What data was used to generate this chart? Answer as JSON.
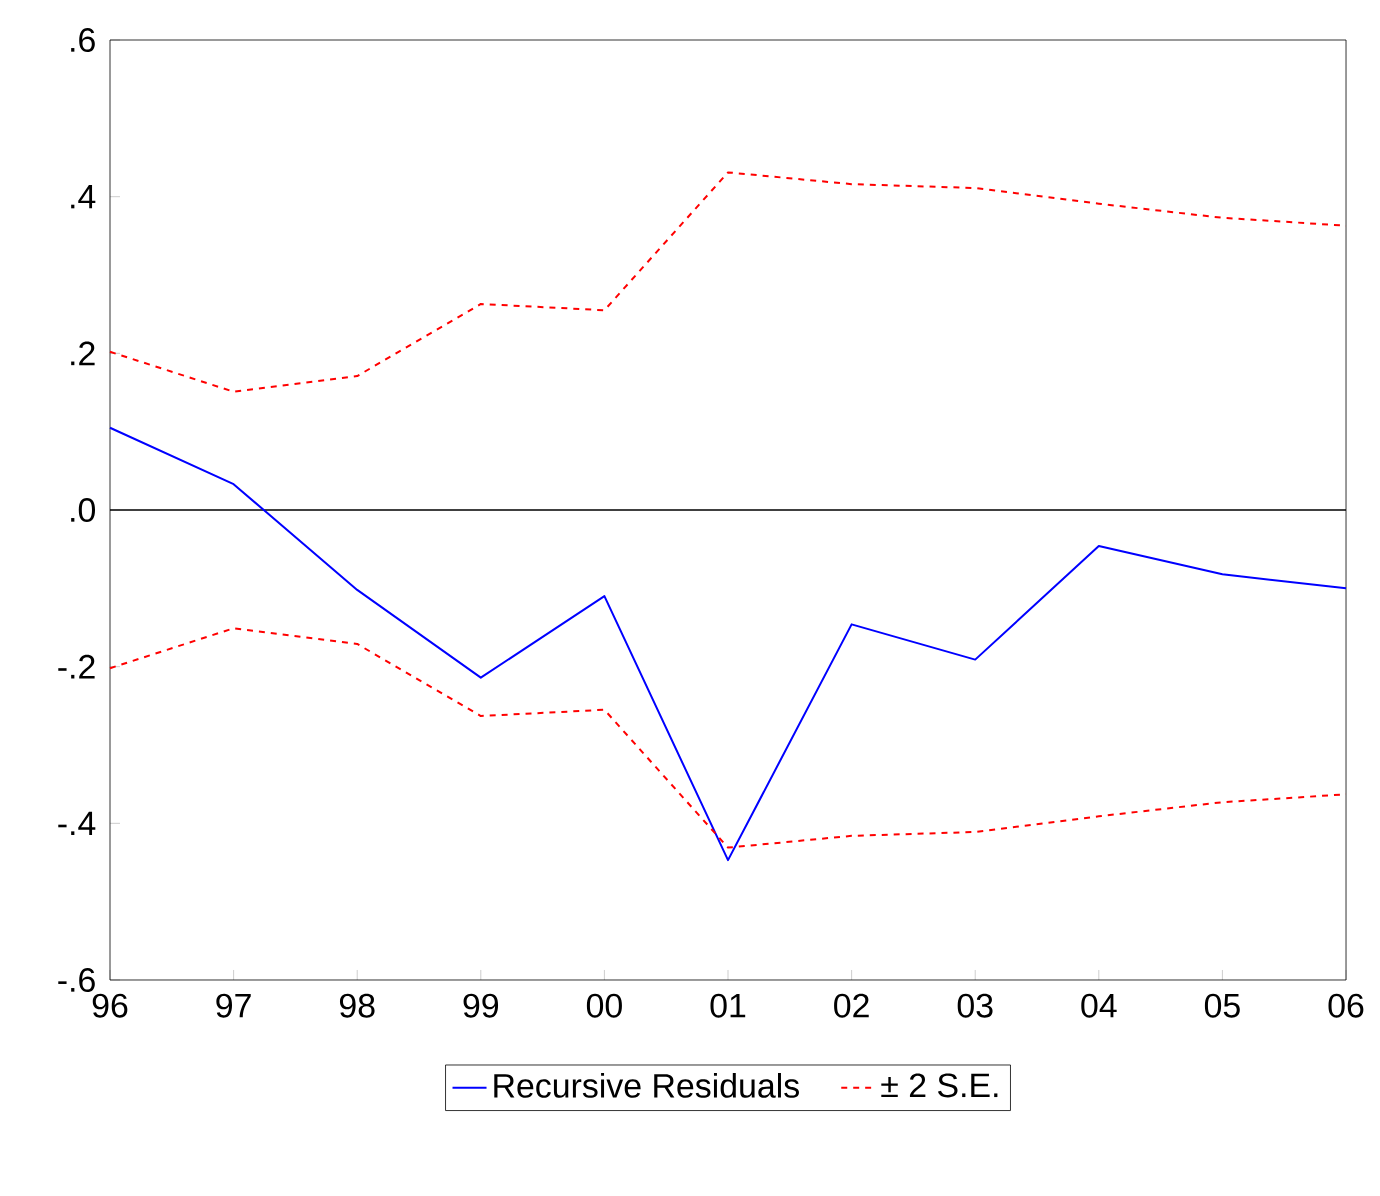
{
  "chart_data": {
    "type": "line",
    "categories": [
      "96",
      "97",
      "98",
      "99",
      "00",
      "01",
      "02",
      "03",
      "04",
      "05",
      "06"
    ],
    "series": [
      {
        "name": "Recursive Residuals",
        "color": "#0000ff",
        "line_style": "solid",
        "values": [
          0.105,
          0.033,
          -0.102,
          -0.214,
          -0.11,
          -0.447,
          -0.146,
          -0.191,
          -0.046,
          -0.082,
          -0.1
        ]
      },
      {
        "name": "± 2 S.E.",
        "color": "#ff0000",
        "line_style": "dashed",
        "values": [
          0.202,
          0.151,
          0.171,
          0.263,
          0.255,
          0.431,
          0.416,
          0.411,
          0.391,
          0.373,
          0.363
        ]
      },
      {
        "color": "#ff0000",
        "line_style": "dashed",
        "values": [
          -0.202,
          -0.151,
          -0.171,
          -0.263,
          -0.255,
          -0.431,
          -0.416,
          -0.411,
          -0.391,
          -0.373,
          -0.363
        ]
      }
    ],
    "ylim": [
      -0.6,
      0.6
    ],
    "yticks": [
      {
        "value": -0.6,
        "label": "-.6"
      },
      {
        "value": -0.4,
        "label": "-.4"
      },
      {
        "value": -0.2,
        "label": "-.2"
      },
      {
        "value": 0,
        "label": ".0"
      },
      {
        "value": 0.2,
        "label": ".2"
      },
      {
        "value": 0.4,
        "label": ".4"
      },
      {
        "value": 0.6,
        "label": ".6"
      }
    ],
    "ref_lines": [
      {
        "axis": "y",
        "value": 0,
        "color": "#000000",
        "line_style": "solid"
      }
    ],
    "grid": false,
    "legend": "bottom"
  }
}
